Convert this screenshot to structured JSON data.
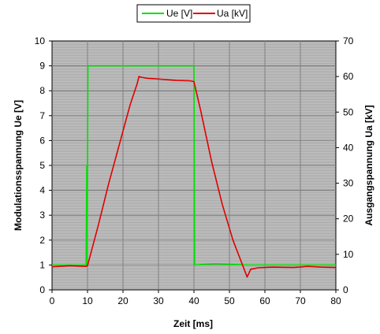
{
  "chart_data": {
    "type": "line",
    "xlabel": "Zeit [ms]",
    "ylabel_left": "Modulationsspannung Ue [V]",
    "ylabel_right": "Ausgangspannung Ua [kV]",
    "xlim": [
      0,
      80
    ],
    "ylim_left": [
      0,
      10
    ],
    "ylim_right": [
      0,
      70
    ],
    "x_ticks": [
      "0",
      "10",
      "20",
      "30",
      "40",
      "50",
      "60",
      "70",
      "80"
    ],
    "y_ticks_left": [
      "0",
      "1",
      "2",
      "3",
      "4",
      "5",
      "6",
      "7",
      "8",
      "9",
      "10"
    ],
    "y_ticks_right": [
      "0",
      "10",
      "20",
      "30",
      "40",
      "50",
      "60",
      "70"
    ],
    "grid": true,
    "legend_position": "top-center",
    "series": [
      {
        "name": "Ue [V]",
        "axis": "left",
        "color": "#00e000",
        "points": [
          [
            0,
            1.0
          ],
          [
            9.6,
            1.0
          ],
          [
            9.8,
            5.0
          ],
          [
            9.9,
            1.0
          ],
          [
            10.1,
            9.0
          ],
          [
            40.0,
            9.0
          ],
          [
            40.2,
            1.0
          ],
          [
            46,
            1.05
          ],
          [
            55,
            1.0
          ],
          [
            65,
            1.0
          ],
          [
            80,
            1.0
          ]
        ]
      },
      {
        "name": "Ua [kV]",
        "axis": "right",
        "color": "#e00000",
        "points": [
          [
            0,
            6.5
          ],
          [
            5,
            6.8
          ],
          [
            9.5,
            6.6
          ],
          [
            10,
            6.8
          ],
          [
            13,
            18
          ],
          [
            16,
            30
          ],
          [
            19,
            41
          ],
          [
            22,
            52
          ],
          [
            24,
            58
          ],
          [
            24.5,
            60
          ],
          [
            25,
            59.8
          ],
          [
            27,
            59.5
          ],
          [
            30,
            59.3
          ],
          [
            35,
            58.9
          ],
          [
            39,
            58.8
          ],
          [
            40,
            58.6
          ],
          [
            42,
            50
          ],
          [
            45,
            36
          ],
          [
            48,
            24
          ],
          [
            51,
            14
          ],
          [
            53,
            8.8
          ],
          [
            55,
            3.6
          ],
          [
            56,
            5.8
          ],
          [
            58,
            6.2
          ],
          [
            62,
            6.4
          ],
          [
            68,
            6.3
          ],
          [
            72,
            6.6
          ],
          [
            76,
            6.4
          ],
          [
            80,
            6.3
          ]
        ]
      }
    ]
  },
  "colors": {
    "plot_background": "#c0c0c0",
    "grid": "#808080",
    "ue_line": "#00e000",
    "ua_line": "#e00000"
  }
}
